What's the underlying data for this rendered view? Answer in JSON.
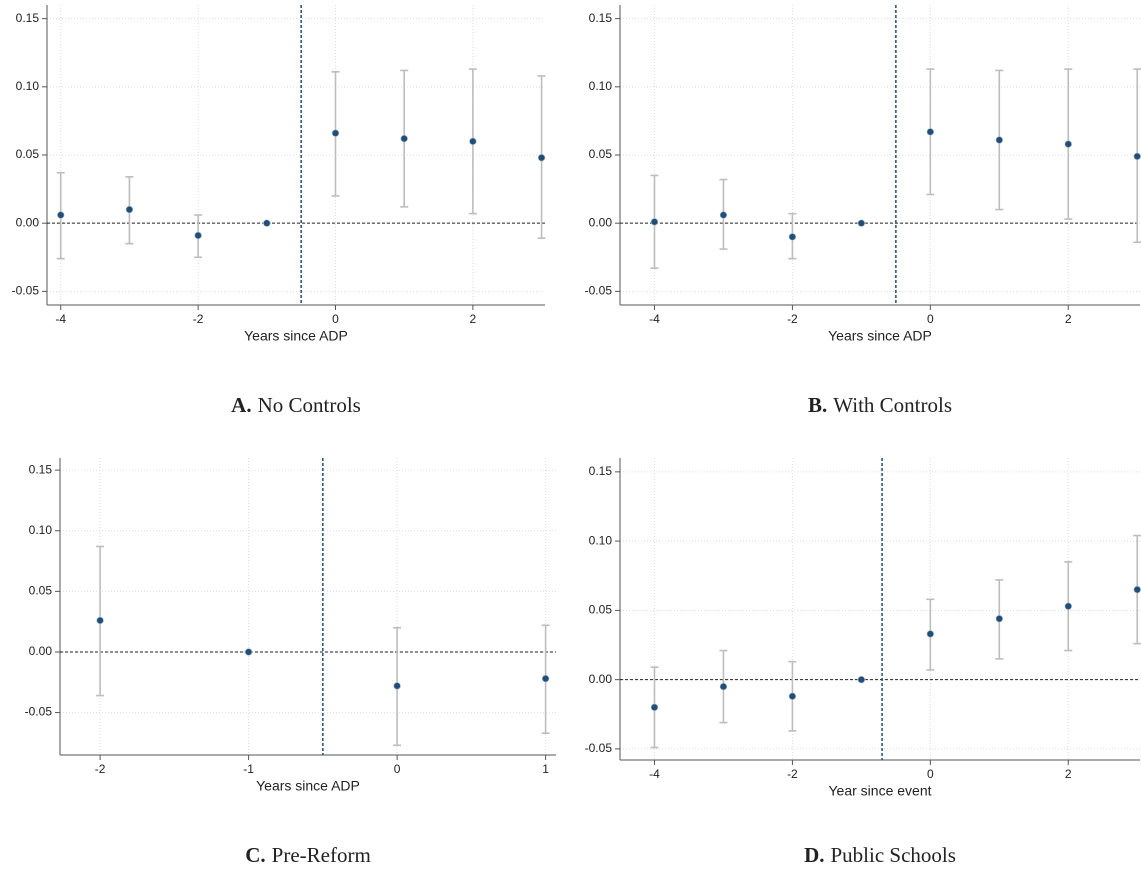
{
  "chart_data": [
    {
      "type": "errorbar",
      "label": "A.",
      "caption": "No Controls",
      "x_label": "Years since ADP",
      "x": [
        -4,
        -3,
        -2,
        -1,
        0,
        1,
        2,
        3
      ],
      "values": [
        0.006,
        0.01,
        -0.009,
        0,
        0.066,
        0.062,
        0.06,
        0.048
      ],
      "ci_low": [
        -0.026,
        -0.015,
        -0.025,
        0,
        0.02,
        0.012,
        0.007,
        -0.011
      ],
      "ci_high": [
        0.037,
        0.034,
        0.006,
        0,
        0.111,
        0.112,
        0.113,
        0.108
      ],
      "color": "#1f4e79",
      "ci_color": "#bdbdbd",
      "hline": 0,
      "vline": -0.5,
      "xlim": [
        -4.2,
        3.05
      ],
      "ylim": [
        -0.06,
        0.16
      ],
      "xticks": [
        -4,
        -2,
        0,
        2
      ],
      "yticks": [
        {
          "value": -0.05,
          "label": "-0.05"
        },
        {
          "value": 0,
          "label": "0.00"
        },
        {
          "value": 0.05,
          "label": "0.05"
        },
        {
          "value": 0.1,
          "label": "0.10"
        },
        {
          "value": 0.15,
          "label": "0.15"
        }
      ],
      "grid": true
    },
    {
      "type": "errorbar",
      "label": "B.",
      "caption": "With Controls",
      "x_label": "Years since ADP",
      "x": [
        -4,
        -3,
        -2,
        -1,
        0,
        1,
        2,
        3
      ],
      "values": [
        0.001,
        0.006,
        -0.01,
        0,
        0.067,
        0.061,
        0.058,
        0.049
      ],
      "ci_low": [
        -0.033,
        -0.019,
        -0.026,
        0,
        0.021,
        0.01,
        0.003,
        -0.014
      ],
      "ci_high": [
        0.035,
        0.032,
        0.007,
        0,
        0.113,
        0.112,
        0.113,
        0.113
      ],
      "color": "#1f4e79",
      "ci_color": "#bdbdbd",
      "hline": 0,
      "vline": -0.5,
      "xlim": [
        -4.5,
        3.04
      ],
      "ylim": [
        -0.06,
        0.16
      ],
      "xticks": [
        -4,
        -2,
        0,
        2
      ],
      "yticks": [
        {
          "value": -0.05,
          "label": "-0.05"
        },
        {
          "value": 0,
          "label": "0.00"
        },
        {
          "value": 0.05,
          "label": "0.05"
        },
        {
          "value": 0.1,
          "label": "0.10"
        },
        {
          "value": 0.15,
          "label": "0.15"
        }
      ],
      "grid": true
    },
    {
      "type": "errorbar",
      "label": "C.",
      "caption": "Pre-Reform",
      "x_label": "Years since ADP",
      "x": [
        -2,
        -1,
        0,
        1
      ],
      "values": [
        0.026,
        0,
        -0.028,
        -0.022
      ],
      "ci_low": [
        -0.036,
        0,
        -0.077,
        -0.067
      ],
      "ci_high": [
        0.087,
        0,
        0.02,
        0.022
      ],
      "color": "#1f4e79",
      "ci_color": "#bdbdbd",
      "hline": 0,
      "vline": -0.5,
      "xlim": [
        -2.27,
        1.07
      ],
      "ylim": [
        -0.085,
        0.16
      ],
      "xticks": [
        -2,
        -1,
        0,
        1
      ],
      "yticks": [
        {
          "value": -0.05,
          "label": "-0.05"
        },
        {
          "value": 0,
          "label": "0.00"
        },
        {
          "value": 0.05,
          "label": "0.05"
        },
        {
          "value": 0.1,
          "label": "0.10"
        },
        {
          "value": 0.15,
          "label": "0.15"
        }
      ],
      "grid": true
    },
    {
      "type": "errorbar",
      "label": "D.",
      "caption": "Public Schools",
      "x_label": "Year since event",
      "x": [
        -4,
        -3,
        -2,
        -1,
        0,
        1,
        2,
        3
      ],
      "values": [
        -0.02,
        -0.005,
        -0.012,
        0,
        0.033,
        0.044,
        0.053,
        0.065
      ],
      "ci_low": [
        -0.049,
        -0.031,
        -0.037,
        0,
        0.007,
        0.015,
        0.021,
        0.026
      ],
      "ci_high": [
        0.009,
        0.021,
        0.013,
        0,
        0.058,
        0.072,
        0.085,
        0.104
      ],
      "color": "#1f4e79",
      "ci_color": "#bdbdbd",
      "hline": 0,
      "vline": -0.7,
      "xlim": [
        -4.5,
        3.04
      ],
      "ylim": [
        -0.058,
        0.16
      ],
      "xticks": [
        -4,
        -2,
        0,
        2
      ],
      "yticks": [
        {
          "value": -0.05,
          "label": "-0.05"
        },
        {
          "value": 0,
          "label": "0.00"
        },
        {
          "value": 0.05,
          "label": "0.05"
        },
        {
          "value": 0.1,
          "label": "0.10"
        },
        {
          "value": 0.15,
          "label": "0.15"
        }
      ],
      "grid": true
    }
  ]
}
